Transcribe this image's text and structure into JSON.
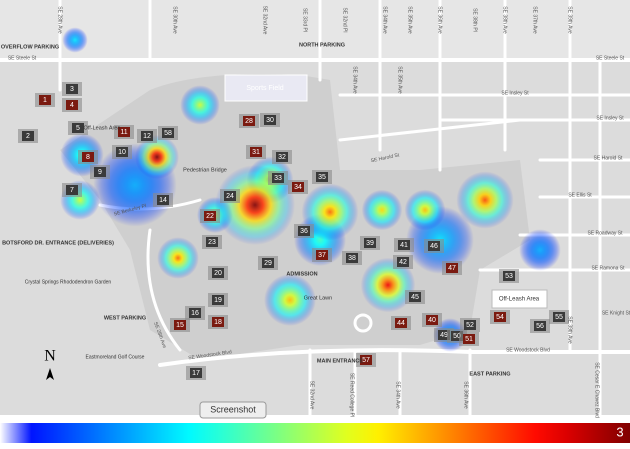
{
  "map": {
    "streets": [
      "SE 28th Ave",
      "SE 30th Ave",
      "SE 32nd Ave",
      "SE 33rd Pl",
      "SE 32nd Pl",
      "SE 34th Ave",
      "SE 35th Ave",
      "SE 36th Ave",
      "SE 38th Pl",
      "SE 38th Ave",
      "SE 37th Ave",
      "SE 39th Ave",
      "SE Steele St",
      "SE Steele St",
      "SE Insley St",
      "SE Insley St",
      "SE Harold St",
      "SE Harold St",
      "SE Ellis St",
      "SE Berkeley Pl",
      "SE Roadway St",
      "SE Ramona St",
      "SE Knight St",
      "SE Woodstock Blvd",
      "SE Woodstock Blvd",
      "SE 28th Ave",
      "SE 32nd Ave",
      "SE Reed College Pl",
      "SE 34th Ave",
      "SE 36th Ave",
      "SE 39th Ave",
      "SE Cesar E Chavez Blvd",
      "SE 34th Ave",
      "SE 35th Ave"
    ],
    "labels": [
      "OVERFLOW PARKING",
      "NORTH PARKING",
      "Sports Field",
      "Off-Leash Area",
      "Pedestrian Bridge",
      "BOTSFORD DR. ENTRANCE (DELIVERIES)",
      "Crystal Springs Rhododendron Garden",
      "WEST PARKING",
      "Eastmoreland Golf Course",
      "ADMISSION",
      "Great Lawn",
      "MAIN ENTRANCE",
      "EAST PARKING",
      "Off-Leash Area"
    ],
    "buildings": [
      "1",
      "2",
      "3",
      "4",
      "5",
      "7",
      "8",
      "9",
      "10",
      "11",
      "12",
      "14",
      "15",
      "16",
      "17",
      "18",
      "19",
      "20",
      "22",
      "23",
      "24",
      "28",
      "29",
      "30",
      "31",
      "32",
      "33",
      "34",
      "35",
      "36",
      "37",
      "38",
      "39",
      "40",
      "41",
      "42",
      "44",
      "45",
      "46",
      "47",
      "49",
      "50",
      "51",
      "52",
      "53",
      "54",
      "55",
      "56",
      "57",
      "58"
    ],
    "compass": "N",
    "button": "Screenshot"
  },
  "heatmap": {
    "hotspots": [
      3.0,
      3.0,
      2.0,
      2.2,
      1.8,
      1.9,
      2.3,
      2.6,
      1.9,
      2.2,
      1.5,
      1.0,
      1.5,
      0.7,
      0.5,
      0.6,
      0.7,
      1.5,
      0.5,
      1.0
    ],
    "colorbar": {
      "max": 3
    }
  }
}
